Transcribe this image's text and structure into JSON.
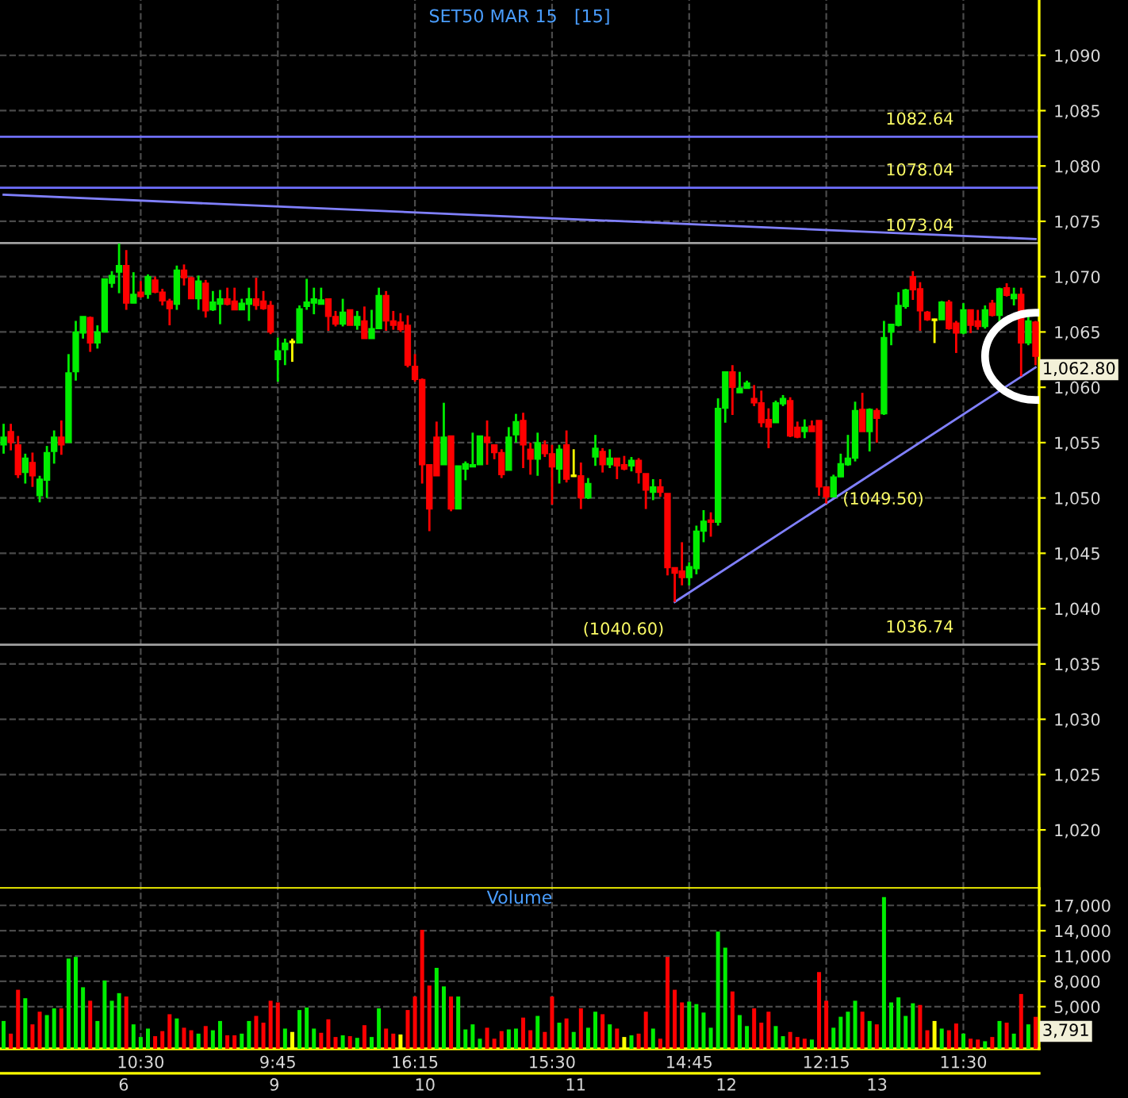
{
  "chart_data": [
    {
      "type": "candlestick",
      "title": "SET50 MAR 15   [15]",
      "categories": [
        null,
        null,
        null,
        null,
        null,
        null,
        null,
        null,
        null,
        null,
        null,
        null,
        null,
        null,
        null,
        null,
        null,
        null,
        null,
        null,
        null,
        null,
        null,
        null,
        null,
        null,
        null,
        null,
        null,
        null,
        null,
        null,
        null,
        null,
        null,
        null,
        null,
        null,
        null,
        null,
        null,
        null,
        null,
        null,
        null,
        null,
        null,
        null,
        null,
        null,
        null,
        null,
        null,
        null,
        null,
        null,
        null,
        null,
        null,
        null,
        null,
        null,
        null,
        null,
        null,
        null,
        null,
        null,
        null,
        null,
        null,
        null,
        null,
        null,
        null,
        null,
        null,
        null,
        null,
        null,
        null,
        null,
        null,
        null,
        null,
        null,
        null,
        null,
        null,
        null,
        null,
        null,
        null,
        null,
        null,
        null,
        null,
        null,
        null,
        null,
        null,
        null,
        null,
        null,
        null,
        null,
        null,
        null,
        null,
        null,
        null,
        null,
        null,
        null,
        null,
        null,
        null,
        null,
        null,
        null,
        null,
        null,
        null,
        null,
        null,
        null,
        null,
        null,
        null,
        null,
        null,
        null,
        null,
        null,
        null,
        null,
        null,
        null,
        null,
        null,
        null,
        null,
        null,
        null
      ],
      "ohlc": [
        [
          1054.8,
          1056.7,
          1054.0,
          1055.5
        ],
        [
          1056.0,
          1056.7,
          1054.3,
          1055.0
        ],
        [
          1054.8,
          1055.6,
          1051.8,
          1052.1
        ],
        [
          1052.3,
          1054.0,
          1051.3,
          1053.6
        ],
        [
          1053.2,
          1054.1,
          1051.0,
          1052.0
        ],
        [
          1050.2,
          1052.0,
          1049.6,
          1051.7
        ],
        [
          1051.6,
          1054.7,
          1050.0,
          1054.1
        ],
        [
          1054.2,
          1056.1,
          1053.1,
          1055.5
        ],
        [
          1055.5,
          1057.0,
          1053.9,
          1054.8
        ],
        [
          1055.0,
          1063.0,
          1055.0,
          1061.3
        ],
        [
          1061.4,
          1066.0,
          1060.6,
          1065.0
        ],
        [
          1064.9,
          1066.4,
          1064.4,
          1066.4
        ],
        [
          1066.3,
          1066.4,
          1063.2,
          1064.0
        ],
        [
          1064.0,
          1065.6,
          1063.5,
          1065.0
        ],
        [
          1065.0,
          1069.8,
          1065.0,
          1069.8
        ],
        [
          1069.4,
          1070.5,
          1069.0,
          1070.1
        ],
        [
          1070.4,
          1073.0,
          1068.5,
          1071.0
        ],
        [
          1071.0,
          1072.4,
          1067.0,
          1067.6
        ],
        [
          1067.6,
          1070.4,
          1067.6,
          1068.4
        ],
        [
          1068.6,
          1069.6,
          1068.1,
          1068.2
        ],
        [
          1068.4,
          1070.2,
          1068.0,
          1070.0
        ],
        [
          1069.7,
          1070.0,
          1068.5,
          1068.6
        ],
        [
          1068.6,
          1068.9,
          1067.4,
          1067.8
        ],
        [
          1067.8,
          1068.0,
          1065.6,
          1067.1
        ],
        [
          1067.5,
          1071.0,
          1067.0,
          1070.6
        ],
        [
          1070.6,
          1071.1,
          1069.2,
          1069.9
        ],
        [
          1069.9,
          1070.0,
          1068.0,
          1068.0
        ],
        [
          1068.0,
          1070.1,
          1067.0,
          1069.6
        ],
        [
          1069.4,
          1069.7,
          1066.3,
          1066.9
        ],
        [
          1067.0,
          1068.7,
          1066.9,
          1067.7
        ],
        [
          1067.5,
          1068.8,
          1065.7,
          1068.0
        ],
        [
          1068.0,
          1069.0,
          1067.4,
          1067.5
        ],
        [
          1067.8,
          1069.0,
          1067.0,
          1067.0
        ],
        [
          1067.0,
          1068.0,
          1067.0,
          1067.6
        ],
        [
          1067.5,
          1069.0,
          1066.0,
          1068.0
        ],
        [
          1068.0,
          1069.9,
          1067.0,
          1067.4
        ],
        [
          1067.8,
          1068.7,
          1067.0,
          1067.1
        ],
        [
          1067.4,
          1067.8,
          1064.8,
          1065.0
        ],
        [
          1062.5,
          1064.5,
          1060.5,
          1063.3
        ],
        [
          1063.4,
          1064.4,
          1062.0,
          1064.0
        ],
        [
          1064.1,
          1064.4,
          1062.3,
          1064.1
        ],
        [
          1064.0,
          1067.4,
          1064.0,
          1067.1
        ],
        [
          1067.3,
          1069.8,
          1067.0,
          1067.7
        ],
        [
          1067.6,
          1069.0,
          1066.6,
          1068.0
        ],
        [
          1067.5,
          1069.0,
          1067.5,
          1067.9
        ],
        [
          1068.0,
          1068.0,
          1065.1,
          1066.4
        ],
        [
          1066.4,
          1066.9,
          1065.5,
          1065.7
        ],
        [
          1065.7,
          1068.0,
          1065.5,
          1066.8
        ],
        [
          1067.0,
          1067.0,
          1065.6,
          1065.6
        ],
        [
          1065.6,
          1066.9,
          1065.2,
          1066.4
        ],
        [
          1066.0,
          1067.3,
          1064.4,
          1064.4
        ],
        [
          1064.4,
          1067.0,
          1064.4,
          1065.3
        ],
        [
          1065.3,
          1069.0,
          1065.3,
          1068.3
        ],
        [
          1068.3,
          1068.7,
          1065.1,
          1066.0
        ],
        [
          1066.0,
          1066.9,
          1065.2,
          1065.6
        ],
        [
          1065.9,
          1066.7,
          1065.0,
          1065.2
        ],
        [
          1065.6,
          1066.5,
          1061.8,
          1062.0
        ],
        [
          1061.9,
          1063.0,
          1060.5,
          1060.7
        ],
        [
          1060.7,
          1060.8,
          1051.3,
          1053.0
        ],
        [
          1053.0,
          1053.0,
          1047.0,
          1049.0
        ],
        [
          1055.5,
          1056.9,
          1052.0,
          1052.0
        ],
        [
          1053.0,
          1058.6,
          1053.0,
          1055.5
        ],
        [
          1055.6,
          1055.6,
          1048.8,
          1049.0
        ],
        [
          1049.0,
          1052.9,
          1049.0,
          1052.9
        ],
        [
          1052.6,
          1053.3,
          1051.6,
          1053.1
        ],
        [
          1052.8,
          1055.9,
          1052.8,
          1053.0
        ],
        [
          1053.0,
          1055.6,
          1053.0,
          1055.6
        ],
        [
          1055.5,
          1057.0,
          1053.0,
          1055.0
        ],
        [
          1054.8,
          1054.8,
          1053.5,
          1054.1
        ],
        [
          1054.1,
          1054.4,
          1051.8,
          1052.1
        ],
        [
          1052.5,
          1056.4,
          1052.5,
          1055.5
        ],
        [
          1055.7,
          1057.6,
          1055.0,
          1056.9
        ],
        [
          1057.0,
          1057.7,
          1052.7,
          1054.8
        ],
        [
          1054.4,
          1055.0,
          1052.1,
          1053.5
        ],
        [
          1053.5,
          1055.9,
          1052.0,
          1055.0
        ],
        [
          1054.8,
          1055.2,
          1053.7,
          1054.0
        ],
        [
          1054.0,
          1054.8,
          1049.4,
          1052.8
        ],
        [
          1052.6,
          1054.8,
          1051.3,
          1054.4
        ],
        [
          1054.8,
          1056.1,
          1051.4,
          1051.7
        ],
        [
          1052.0,
          1054.4,
          1051.9,
          1052.0
        ],
        [
          1052.0,
          1053.2,
          1049.0,
          1050.0
        ],
        [
          1050.0,
          1051.8,
          1049.9,
          1051.3
        ],
        [
          1053.7,
          1055.7,
          1052.9,
          1054.5
        ],
        [
          1054.2,
          1054.5,
          1052.3,
          1053.0
        ],
        [
          1053.0,
          1054.4,
          1052.7,
          1053.6
        ],
        [
          1053.6,
          1053.6,
          1051.7,
          1052.9
        ],
        [
          1053.0,
          1053.8,
          1052.5,
          1052.6
        ],
        [
          1052.9,
          1053.7,
          1052.4,
          1053.4
        ],
        [
          1053.4,
          1053.6,
          1051.3,
          1052.3
        ],
        [
          1052.2,
          1052.2,
          1049.0,
          1050.7
        ],
        [
          1050.5,
          1051.7,
          1049.8,
          1051.0
        ],
        [
          1051.0,
          1051.7,
          1050.1,
          1050.5
        ],
        [
          1050.4,
          1050.4,
          1043.0,
          1043.7
        ],
        [
          1043.7,
          1043.7,
          1040.6,
          1043.2
        ],
        [
          1043.4,
          1046.0,
          1042.1,
          1042.8
        ],
        [
          1042.8,
          1044.2,
          1042.1,
          1043.8
        ],
        [
          1043.6,
          1047.5,
          1043.1,
          1047.0
        ],
        [
          1047.0,
          1048.9,
          1046.0,
          1047.9
        ],
        [
          1048.0,
          1048.7,
          1046.5,
          1047.8
        ],
        [
          1047.8,
          1059.0,
          1047.5,
          1058.1
        ],
        [
          1058.1,
          1061.4,
          1056.8,
          1061.4
        ],
        [
          1061.4,
          1062.0,
          1057.5,
          1060.0
        ],
        [
          1059.5,
          1061.4,
          1059.5,
          1059.9
        ],
        [
          1059.9,
          1060.6,
          1059.9,
          1060.4
        ],
        [
          1059.0,
          1060.2,
          1058.3,
          1058.6
        ],
        [
          1058.6,
          1059.7,
          1056.4,
          1056.8
        ],
        [
          1057.1,
          1058.1,
          1054.5,
          1056.4
        ],
        [
          1056.8,
          1058.8,
          1056.8,
          1058.6
        ],
        [
          1058.5,
          1059.3,
          1058.3,
          1059.0
        ],
        [
          1058.8,
          1059.1,
          1055.5,
          1055.6
        ],
        [
          1056.4,
          1056.9,
          1055.4,
          1055.5
        ],
        [
          1056.0,
          1057.1,
          1055.4,
          1056.4
        ],
        [
          1056.5,
          1057.0,
          1056.0,
          1056.0
        ],
        [
          1057.0,
          1057.0,
          1050.2,
          1051.0
        ],
        [
          1051.0,
          1051.0,
          1049.5,
          1050.1
        ],
        [
          1050.1,
          1052.1,
          1050.1,
          1051.9
        ],
        [
          1051.9,
          1054.0,
          1051.9,
          1053.1
        ],
        [
          1053.0,
          1055.7,
          1052.9,
          1053.6
        ],
        [
          1053.6,
          1058.7,
          1053.3,
          1057.9
        ],
        [
          1058.0,
          1059.5,
          1056.0,
          1056.0
        ],
        [
          1056.0,
          1058.1,
          1054.2,
          1058.0
        ],
        [
          1057.9,
          1058.1,
          1055.0,
          1057.2
        ],
        [
          1057.6,
          1066.0,
          1057.5,
          1064.5
        ],
        [
          1065.0,
          1065.7,
          1063.8,
          1065.7
        ],
        [
          1065.6,
          1068.6,
          1065.5,
          1067.4
        ],
        [
          1067.3,
          1068.9,
          1067.1,
          1068.8
        ],
        [
          1070.0,
          1070.5,
          1067.9,
          1068.8
        ],
        [
          1068.9,
          1069.5,
          1065.1,
          1066.9
        ],
        [
          1066.8,
          1066.9,
          1066.0,
          1066.1
        ],
        [
          1066.1,
          1066.2,
          1064.0,
          1066.1
        ],
        [
          1066.1,
          1067.8,
          1066.1,
          1067.7
        ],
        [
          1067.7,
          1067.9,
          1065.2,
          1065.3
        ],
        [
          1065.8,
          1066.0,
          1063.1,
          1064.9
        ],
        [
          1064.9,
          1067.6,
          1064.8,
          1067.0
        ],
        [
          1067.0,
          1067.0,
          1064.9,
          1065.6
        ],
        [
          1066.0,
          1067.0,
          1065.2,
          1065.5
        ],
        [
          1065.5,
          1067.4,
          1065.3,
          1067.0
        ],
        [
          1067.6,
          1067.9,
          1066.4,
          1066.5
        ],
        [
          1066.5,
          1069.0,
          1065.7,
          1068.9
        ],
        [
          1069.0,
          1069.4,
          1068.2,
          1068.3
        ],
        [
          1068.0,
          1069.0,
          1067.4,
          1068.4
        ],
        [
          1068.4,
          1069.0,
          1061.0,
          1064.0
        ],
        [
          1064.0,
          1066.7,
          1063.8,
          1066.0
        ],
        [
          1065.9,
          1066.0,
          1062.0,
          1062.8
        ]
      ],
      "colors": [
        "#00ee00",
        "#ff0000",
        "#ff0000",
        "#00ee00",
        "#ff0000",
        "#00ee00",
        "#00ee00",
        "#00ee00",
        "#ff0000",
        "#00ee00",
        "#00ee00",
        "#00ee00",
        "#ff0000",
        "#00ee00",
        "#00ee00",
        "#00ee00",
        "#00ee00",
        "#ff0000",
        "#00ee00",
        "#ff0000",
        "#00ee00",
        "#ff0000",
        "#ff0000",
        "#ff0000",
        "#00ee00",
        "#ff0000",
        "#ff0000",
        "#00ee00",
        "#ff0000",
        "#00ee00",
        "#00ee00",
        "#ff0000",
        "#ff0000",
        "#00ee00",
        "#00ee00",
        "#ff0000",
        "#ff0000",
        "#ff0000",
        "#00ee00",
        "#00ee00",
        "#ffff00",
        "#00ee00",
        "#00ee00",
        "#00ee00",
        "#00ee00",
        "#ff0000",
        "#ff0000",
        "#00ee00",
        "#ff0000",
        "#00ee00",
        "#ff0000",
        "#00ee00",
        "#00ee00",
        "#ff0000",
        "#ff0000",
        "#ff0000",
        "#ff0000",
        "#ff0000",
        "#ff0000",
        "#ff0000",
        "#ff0000",
        "#00ee00",
        "#ff0000",
        "#00ee00",
        "#00ee00",
        "#00ee00",
        "#00ee00",
        "#ff0000",
        "#ff0000",
        "#ff0000",
        "#00ee00",
        "#00ee00",
        "#ff0000",
        "#ff0000",
        "#00ee00",
        "#ff0000",
        "#ff0000",
        "#00ee00",
        "#ff0000",
        "#ffff00",
        "#ff0000",
        "#00ee00",
        "#00ee00",
        "#ff0000",
        "#00ee00",
        "#ff0000",
        "#ff0000",
        "#00ee00",
        "#ff0000",
        "#ff0000",
        "#00ee00",
        "#ff0000",
        "#ff0000",
        "#ff0000",
        "#ff0000",
        "#00ee00",
        "#00ee00",
        "#00ee00",
        "#ff0000",
        "#00ee00",
        "#00ee00",
        "#ff0000",
        "#00ee00",
        "#00ee00",
        "#ff0000",
        "#ff0000",
        "#ff0000",
        "#00ee00",
        "#00ee00",
        "#ff0000",
        "#ff0000",
        "#00ee00",
        "#ff0000",
        "#ff0000",
        "#ff0000",
        "#00ee00",
        "#00ee00",
        "#00ee00",
        "#00ee00",
        "#ff0000",
        "#00ee00",
        "#ff0000",
        "#00ee00",
        "#00ee00",
        "#00ee00",
        "#00ee00",
        "#ff0000",
        "#ff0000",
        "#ff0000",
        "#ffff00",
        "#00ee00",
        "#ff0000",
        "#ff0000",
        "#00ee00",
        "#ff0000",
        "#ff0000",
        "#00ee00",
        "#ff0000",
        "#00ee00",
        "#ff0000",
        "#00ee00",
        "#ff0000",
        "#00ee00",
        "#ff0000"
      ],
      "series": [
        {
          "type": "line",
          "values": [
            1077.4,
            null,
            null,
            null,
            null,
            null,
            null,
            null,
            null,
            null,
            null,
            null,
            null,
            null,
            null,
            null,
            null,
            null,
            null,
            null,
            null,
            null,
            null,
            null,
            null,
            null,
            null,
            null,
            null,
            null,
            null,
            null,
            null,
            null,
            null,
            null,
            null,
            null,
            null,
            null,
            null,
            null,
            null,
            null,
            null,
            null,
            null,
            null,
            null,
            null,
            null,
            null,
            null,
            null,
            null,
            null,
            null,
            null,
            null,
            null,
            null,
            null,
            null,
            null,
            null,
            null,
            null,
            null,
            null,
            null,
            null,
            null,
            null,
            null,
            null,
            null,
            null,
            null,
            null,
            null,
            null,
            null,
            null,
            null,
            null,
            null,
            null,
            null,
            null,
            null,
            null,
            null,
            null,
            null,
            null,
            null,
            null,
            null,
            null,
            null,
            null,
            null,
            null,
            null,
            null,
            null,
            null,
            null,
            null,
            null,
            null,
            null,
            null,
            null,
            null,
            null,
            null,
            null,
            null,
            null,
            null,
            null,
            null,
            null,
            null,
            null,
            null,
            null,
            null,
            null,
            null,
            null,
            null,
            null,
            null,
            null,
            null,
            null,
            null,
            null,
            null,
            null,
            null,
            1073.4
          ],
          "color": "#8080ff"
        },
        {
          "type": "line",
          "values": [
            null,
            null,
            null,
            null,
            null,
            null,
            null,
            null,
            null,
            null,
            null,
            null,
            null,
            null,
            null,
            null,
            null,
            null,
            null,
            null,
            null,
            null,
            null,
            null,
            null,
            null,
            null,
            null,
            null,
            null,
            null,
            null,
            null,
            null,
            null,
            null,
            null,
            null,
            null,
            null,
            null,
            null,
            null,
            null,
            null,
            null,
            null,
            null,
            null,
            null,
            null,
            null,
            null,
            null,
            null,
            null,
            null,
            null,
            null,
            null,
            null,
            null,
            null,
            null,
            null,
            null,
            null,
            null,
            null,
            null,
            null,
            null,
            null,
            null,
            null,
            null,
            null,
            null,
            null,
            null,
            null,
            null,
            null,
            null,
            null,
            null,
            null,
            null,
            null,
            null,
            null,
            null,
            null,
            1040.6,
            null,
            null,
            null,
            null,
            null,
            null,
            null,
            null,
            null,
            null,
            null,
            null,
            null,
            null,
            null,
            null,
            null,
            null,
            null,
            null,
            null,
            null,
            null,
            null,
            null,
            null,
            null,
            null,
            null,
            null,
            null,
            null,
            null,
            null,
            null,
            null,
            null,
            null,
            null,
            null,
            null,
            null,
            null,
            null,
            null,
            null,
            null,
            null,
            null,
            1061.8
          ],
          "color": "#8080ff"
        }
      ],
      "ref_lines": [
        {
          "axis": "y",
          "value": 1082.64,
          "label": "1082.64",
          "color": "#6f6fff"
        },
        {
          "axis": "y",
          "value": 1078.04,
          "label": "1078.04",
          "color": "#6f6fff"
        },
        {
          "axis": "y",
          "value": 1073.04,
          "label": "1073.04",
          "color": "#a0a0a0"
        },
        {
          "axis": "y",
          "value": 1036.74,
          "label": "1036.74",
          "color": "#a0a0a0"
        }
      ],
      "annotations": [
        "(1040.60)",
        "(1049.50)",
        "1,062.80"
      ],
      "ylim": [
        1014.7,
        1095
      ],
      "yticks": [
        {
          "value": 1020,
          "label": "1,020"
        },
        {
          "value": 1025,
          "label": "1,025"
        },
        {
          "value": 1030,
          "label": "1,030"
        },
        {
          "value": 1035,
          "label": "1,035"
        },
        {
          "value": 1040,
          "label": "1,040"
        },
        {
          "value": 1045,
          "label": "1,045"
        },
        {
          "value": 1050,
          "label": "1,050"
        },
        {
          "value": 1055,
          "label": "1,055"
        },
        {
          "value": 1060,
          "label": "1,060"
        },
        {
          "value": 1065,
          "label": "1,065"
        },
        {
          "value": 1070,
          "label": "1,070"
        },
        {
          "value": 1075,
          "label": "1,075"
        },
        {
          "value": 1080,
          "label": "1,080"
        },
        {
          "value": 1085,
          "label": "1,085"
        },
        {
          "value": 1090,
          "label": "1,090"
        }
      ],
      "grid": true,
      "tick_labels": "y"
    },
    {
      "type": "bar",
      "title": "Volume",
      "categories": [
        null,
        null,
        null,
        null,
        null,
        null,
        null,
        null,
        null,
        null,
        null,
        null,
        null,
        null,
        null,
        null,
        null,
        null,
        null,
        "10:30",
        null,
        null,
        null,
        null,
        null,
        null,
        null,
        null,
        null,
        null,
        null,
        null,
        null,
        null,
        null,
        null,
        null,
        null,
        "9:45",
        null,
        null,
        null,
        null,
        null,
        null,
        null,
        null,
        null,
        null,
        null,
        null,
        null,
        null,
        null,
        null,
        null,
        null,
        "16:15",
        null,
        null,
        null,
        null,
        null,
        null,
        null,
        null,
        null,
        null,
        null,
        null,
        null,
        null,
        null,
        null,
        null,
        null,
        "15:30",
        null,
        null,
        null,
        null,
        null,
        null,
        null,
        null,
        null,
        null,
        null,
        null,
        null,
        null,
        null,
        null,
        null,
        null,
        "14:45",
        null,
        null,
        null,
        null,
        null,
        null,
        null,
        null,
        null,
        null,
        null,
        null,
        null,
        null,
        null,
        null,
        null,
        null,
        "12:15",
        null,
        null,
        null,
        null,
        null,
        null,
        null,
        null,
        null,
        null,
        null,
        null,
        null,
        null,
        null,
        null,
        null,
        null,
        "11:30",
        null,
        null,
        null,
        null,
        null,
        null,
        null,
        null,
        null,
        null
      ],
      "values": [
        3300,
        1800,
        7000,
        6000,
        2900,
        4400,
        4000,
        4800,
        4800,
        10700,
        10900,
        7300,
        5700,
        3300,
        8100,
        5700,
        6600,
        6200,
        2900,
        1400,
        2400,
        1500,
        2100,
        4100,
        3600,
        2500,
        2200,
        1800,
        2700,
        2200,
        3300,
        1600,
        1600,
        1800,
        3300,
        3900,
        3100,
        5700,
        5500,
        2400,
        2000,
        4600,
        4900,
        2400,
        1900,
        3500,
        1400,
        1600,
        1500,
        1300,
        2800,
        1400,
        4800,
        2400,
        1800,
        1700,
        4600,
        6200,
        14100,
        7500,
        9600,
        7400,
        6200,
        6200,
        2300,
        2900,
        1200,
        2500,
        1200,
        2100,
        2300,
        2400,
        3700,
        2200,
        3900,
        2000,
        6200,
        3100,
        3600,
        2000,
        4800,
        2500,
        4400,
        4100,
        2900,
        2400,
        1400,
        1600,
        1800,
        4400,
        2400,
        1200,
        10900,
        7000,
        5500,
        5600,
        5300,
        4300,
        2500,
        13900,
        12000,
        6800,
        4000,
        2700,
        4800,
        3100,
        4400,
        2700,
        1500,
        2000,
        1400,
        1200,
        1100,
        9100,
        5700,
        2500,
        3800,
        4400,
        5700,
        4400,
        3300,
        2900,
        18000,
        5500,
        6100,
        3900,
        5400,
        5200,
        2200,
        3300,
        2400,
        2200,
        3000,
        1800,
        1200,
        1100,
        900,
        1400,
        3300,
        3100,
        1800,
        6500,
        2900,
        3791
      ],
      "colors": [
        "#00ee00",
        "#ff0000",
        "#ff0000",
        "#00ee00",
        "#ff0000",
        "#ff0000",
        "#00ee00",
        "#00ee00",
        "#ff0000",
        "#00ee00",
        "#00ee00",
        "#00ee00",
        "#ff0000",
        "#00ee00",
        "#00ee00",
        "#00ee00",
        "#00ee00",
        "#ff0000",
        "#00ee00",
        "#00ee00",
        "#00ee00",
        "#ff0000",
        "#ff0000",
        "#ff0000",
        "#00ee00",
        "#ff0000",
        "#ff0000",
        "#00ee00",
        "#ff0000",
        "#00ee00",
        "#00ee00",
        "#ff0000",
        "#ff0000",
        "#00ee00",
        "#00ee00",
        "#ff0000",
        "#ff0000",
        "#ff0000",
        "#ff0000",
        "#00ee00",
        "#ffff00",
        "#00ee00",
        "#00ee00",
        "#00ee00",
        "#ff0000",
        "#ff0000",
        "#ff0000",
        "#00ee00",
        "#ff0000",
        "#00ee00",
        "#ff0000",
        "#00ee00",
        "#00ee00",
        "#ff0000",
        "#ff0000",
        "#ffff00",
        "#ff0000",
        "#ff0000",
        "#ff0000",
        "#ff0000",
        "#00ee00",
        "#00ee00",
        "#ff0000",
        "#00ee00",
        "#00ee00",
        "#00ee00",
        "#00ee00",
        "#ff0000",
        "#ff0000",
        "#ff0000",
        "#00ee00",
        "#00ee00",
        "#ff0000",
        "#ff0000",
        "#00ee00",
        "#ff0000",
        "#ff0000",
        "#00ee00",
        "#ff0000",
        "#00ee00",
        "#ff0000",
        "#00ee00",
        "#00ee00",
        "#ff0000",
        "#00ee00",
        "#ff0000",
        "#ffff00",
        "#00ee00",
        "#ff0000",
        "#ff0000",
        "#00ee00",
        "#ff0000",
        "#ff0000",
        "#ff0000",
        "#ff0000",
        "#00ee00",
        "#00ee00",
        "#00ee00",
        "#00ee00",
        "#00ee00",
        "#00ee00",
        "#ff0000",
        "#00ee00",
        "#00ee00",
        "#ff0000",
        "#ff0000",
        "#ff0000",
        "#00ee00",
        "#00ee00",
        "#ff0000",
        "#ff0000",
        "#ff0000",
        "#00ee00",
        "#ff0000",
        "#ff0000",
        "#00ee00",
        "#00ee00",
        "#00ee00",
        "#00ee00",
        "#ff0000",
        "#00ee00",
        "#ff0000",
        "#00ee00",
        "#00ee00",
        "#00ee00",
        "#00ee00",
        "#00ee00",
        "#ff0000",
        "#ff0000",
        "#ffff00",
        "#00ee00",
        "#ff0000",
        "#ff0000",
        "#00ee00",
        "#ff0000",
        "#ff0000",
        "#00ee00",
        "#ff0000",
        "#00ee00",
        "#ff0000",
        "#00ee00",
        "#ff0000",
        "#00ee00",
        "#ff0000"
      ],
      "annotations": [
        "3,791",
        "6",
        "9",
        "10",
        "11",
        "12",
        "13"
      ],
      "ylim": [
        0,
        19000
      ],
      "yticks": [
        {
          "value": 5000,
          "label": "5,000"
        },
        {
          "value": 8000,
          "label": "8,000"
        },
        {
          "value": 11000,
          "label": "11,000"
        },
        {
          "value": 14000,
          "label": "14,000"
        },
        {
          "value": 17000,
          "label": "17,000"
        }
      ],
      "grid": true
    }
  ]
}
